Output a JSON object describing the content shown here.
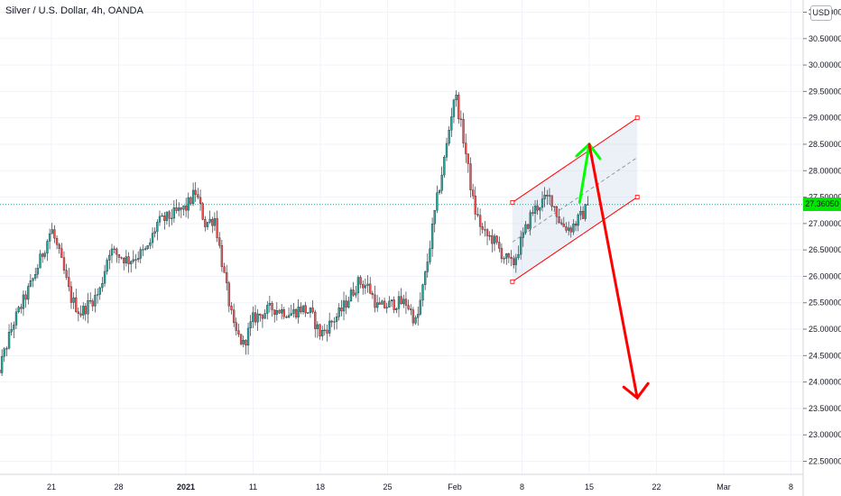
{
  "header": {
    "title": "Silver / U.S. Dollar, 4h, OANDA",
    "currency": "USD"
  },
  "colors": {
    "up": "#26a69a",
    "down": "#ef5350",
    "wick": "#131722",
    "last_price_bg": "#00e600",
    "channel": "#ff0000",
    "arrow_up": "#00ff00",
    "arrow_down": "#ff0000",
    "grid": "#f0f3fa"
  },
  "chart_data": {
    "type": "candlestick",
    "symbol": "Silver / U.S. Dollar",
    "interval": "4h",
    "source": "OANDA",
    "currency": "USD",
    "last_price": "27.36050",
    "ylim": [
      22.3,
      31.2
    ],
    "yticks": [
      "22.50000",
      "23.00000",
      "23.50000",
      "24.00000",
      "24.50000",
      "25.00000",
      "25.50000",
      "26.00000",
      "26.50000",
      "27.00000",
      "27.50000",
      "28.00000",
      "28.50000",
      "29.00000",
      "29.50000",
      "30.00000",
      "30.50000",
      "31.00000"
    ],
    "xtick_labels": [
      "21",
      "28",
      "2021",
      "11",
      "18",
      "25",
      "Feb",
      "8",
      "15",
      "22",
      "Mar",
      "8"
    ],
    "approx_path": [
      [
        "Dec 15",
        23.9
      ],
      [
        "Dec 17",
        25.1
      ],
      [
        "Dec 19",
        25.9
      ],
      [
        "Dec 21",
        26.9
      ],
      [
        "Dec 22",
        26.3
      ],
      [
        "Dec 23",
        25.6
      ],
      [
        "Dec 24",
        25.3
      ],
      [
        "Dec 26",
        25.7
      ],
      [
        "Dec 27",
        26.5
      ],
      [
        "Dec 29",
        26.3
      ],
      [
        "Dec 31",
        26.5
      ],
      [
        "Jan 1",
        27.0
      ],
      [
        "Jan 4",
        27.3
      ],
      [
        "Jan 5",
        27.6
      ],
      [
        "Jan 6",
        27.0
      ],
      [
        "Jan 7",
        27.1
      ],
      [
        "Jan 8",
        26.0
      ],
      [
        "Jan 9",
        25.0
      ],
      [
        "Jan 10",
        24.7
      ],
      [
        "Jan 11",
        25.2
      ],
      [
        "Jan 13",
        25.4
      ],
      [
        "Jan 15",
        25.3
      ],
      [
        "Jan 16",
        25.4
      ],
      [
        "Jan 17",
        25.3
      ],
      [
        "Jan 18",
        24.9
      ],
      [
        "Jan 19",
        25.1
      ],
      [
        "Jan 20",
        25.3
      ],
      [
        "Jan 22",
        25.9
      ],
      [
        "Jan 23",
        25.8
      ],
      [
        "Jan 24",
        25.4
      ],
      [
        "Jan 26",
        25.5
      ],
      [
        "Jan 27",
        25.5
      ],
      [
        "Jan 28",
        25.1
      ],
      [
        "Jan 29",
        26.1
      ],
      [
        "Jan 30",
        27.3
      ],
      [
        "Jan 31",
        28.3
      ],
      [
        "Feb 1",
        29.5
      ],
      [
        "Feb 2",
        28.5
      ],
      [
        "Feb 3",
        27.3
      ],
      [
        "Feb 4",
        26.8
      ],
      [
        "Feb 5",
        26.7
      ],
      [
        "Feb 6",
        26.4
      ],
      [
        "Feb 7",
        26.2
      ],
      [
        "Feb 8",
        26.7
      ],
      [
        "Feb 9",
        27.2
      ],
      [
        "Feb 10",
        27.4
      ],
      [
        "Feb 11",
        27.5
      ],
      [
        "Feb 12",
        27.0
      ],
      [
        "Feb 13",
        26.9
      ],
      [
        "Feb 14",
        27.1
      ],
      [
        "Feb 15",
        27.36
      ]
    ],
    "drawings": {
      "channel_upper": [
        [
          "Feb 7",
          27.4
        ],
        [
          "Feb 20",
          29.0
        ]
      ],
      "channel_lower": [
        [
          "Feb 7",
          25.9
        ],
        [
          "Feb 20",
          27.5
        ]
      ],
      "channel_mid": [
        [
          "Feb 7",
          26.65
        ],
        [
          "Feb 20",
          28.25
        ]
      ],
      "arrow_up": [
        [
          "Feb 14",
          27.4
        ],
        [
          "Feb 15",
          28.5
        ]
      ],
      "arrow_down": [
        [
          "Feb 15",
          28.5
        ],
        [
          "Feb 20",
          23.7
        ]
      ]
    }
  }
}
